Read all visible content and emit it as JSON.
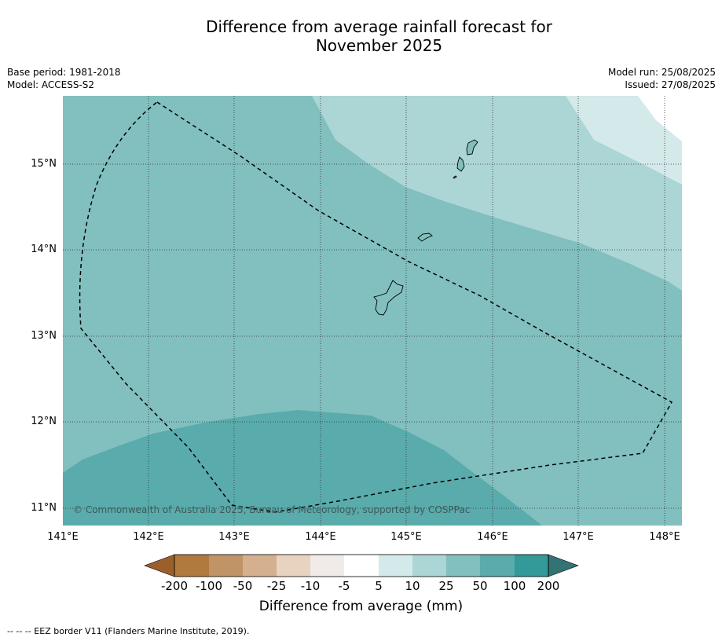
{
  "title_line1": "Difference from average rainfall forecast for",
  "title_line2": "November 2025",
  "meta": {
    "base_period": "Base period: 1981-2018",
    "model": "Model: ACCESS-S2",
    "model_run": "Model run: 25/08/2025",
    "issued": "Issued: 27/08/2025"
  },
  "map": {
    "lat_labels": [
      "15°N",
      "14°N",
      "13°N",
      "12°N",
      "11°N"
    ],
    "lon_labels": [
      "141°E",
      "142°E",
      "143°E",
      "144°E",
      "145°E",
      "146°E",
      "147°E",
      "148°E"
    ],
    "copyright": "© Commonwealth of Australia 2025, Bureau of Meteorology, supported by COSPPac",
    "zone_colors": [
      "#5aabab",
      "#82bfbf",
      "#acd5d5",
      "#d4e9e9"
    ]
  },
  "colorbar": {
    "ticks": [
      "-200",
      "-100",
      "-50",
      "-25",
      "-10",
      "-5",
      "5",
      "10",
      "25",
      "50",
      "100",
      "200"
    ],
    "colors": [
      "#9b5f2b",
      "#b07a3f",
      "#c19467",
      "#d4b08f",
      "#e8d2c0",
      "#f0ebe8",
      "#ffffff",
      "#d4e9e9",
      "#acd5d5",
      "#82bfbf",
      "#5aabab",
      "#339999",
      "#337373"
    ],
    "title": "Difference from average (mm)"
  },
  "footnote": "--  --  -- EEZ border V11 (Flanders Marine Institute, 2019)."
}
